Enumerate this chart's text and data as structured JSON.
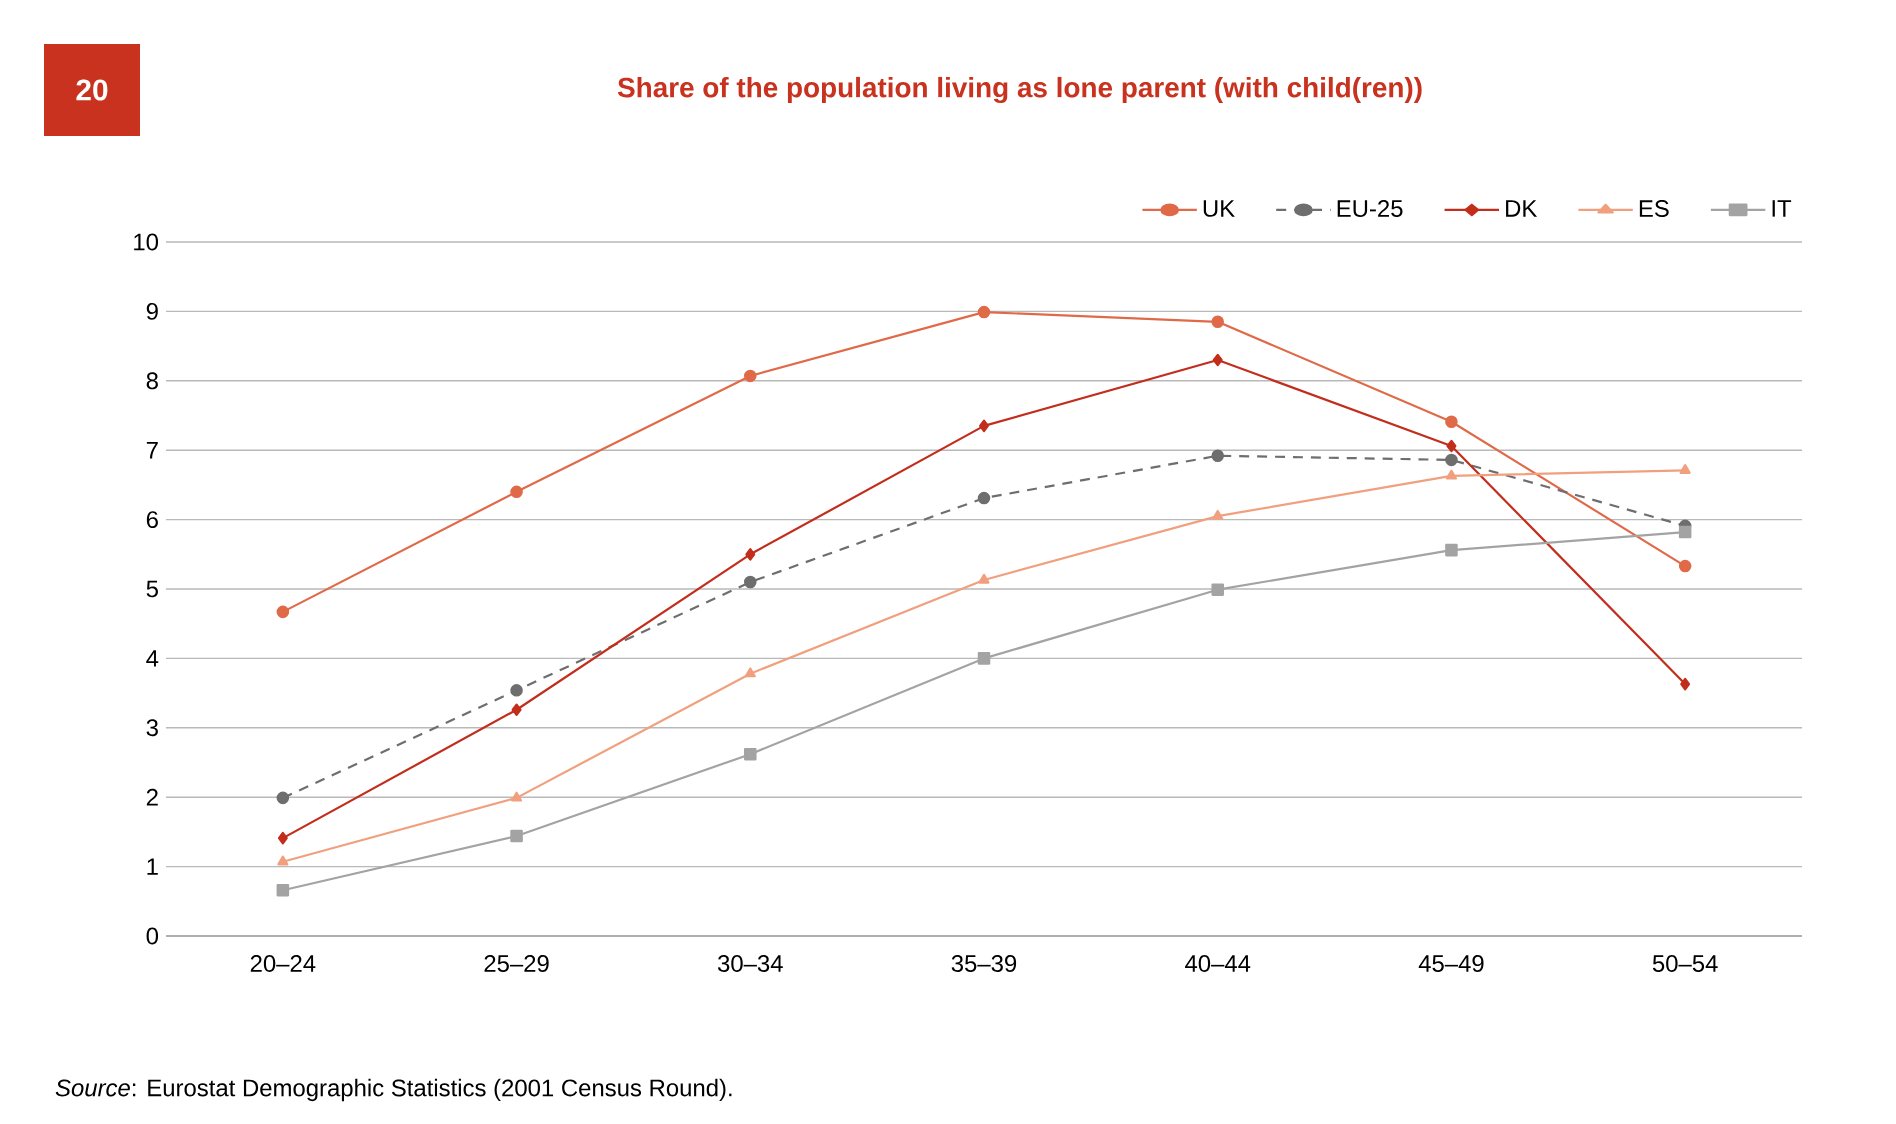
{
  "chart_data": {
    "type": "line",
    "title": "Share of the population living as lone parent (with child(ren))",
    "categories": [
      "20–24",
      "25–29",
      "30–34",
      "35–39",
      "40–44",
      "45–49",
      "50–54"
    ],
    "series": [
      {
        "name": "UK",
        "color": "#e06a48",
        "marker": "circle",
        "line_style": "solid",
        "values": [
          4.67,
          6.4,
          8.07,
          8.99,
          8.85,
          7.41,
          5.33
        ]
      },
      {
        "name": "EU-25",
        "color": "#6e6e6e",
        "marker": "circle",
        "line_style": "dashed",
        "values": [
          1.99,
          3.54,
          5.1,
          6.31,
          6.92,
          6.86,
          5.91
        ]
      },
      {
        "name": "DK",
        "color": "#c22d1c",
        "marker": "diamond",
        "line_style": "solid",
        "values": [
          1.41,
          3.26,
          5.5,
          7.35,
          8.3,
          7.06,
          3.63
        ]
      },
      {
        "name": "ES",
        "color": "#f0a07e",
        "marker": "triangle",
        "line_style": "solid",
        "values": [
          1.07,
          1.99,
          3.78,
          5.13,
          6.05,
          6.63,
          6.71
        ]
      },
      {
        "name": "IT",
        "color": "#a3a3a3",
        "marker": "square",
        "line_style": "solid",
        "values": [
          0.66,
          1.44,
          2.62,
          4.0,
          4.99,
          5.56,
          5.82
        ]
      }
    ],
    "ylim": [
      0,
      10
    ],
    "yticks": [
      0,
      1,
      2,
      3,
      4,
      5,
      6,
      7,
      8,
      9,
      10
    ],
    "grid": "y",
    "legend": "top right",
    "annotations": [
      "20",
      "*Source*: Eurostat Demographic Statistics (2001 Census Round)."
    ]
  }
}
